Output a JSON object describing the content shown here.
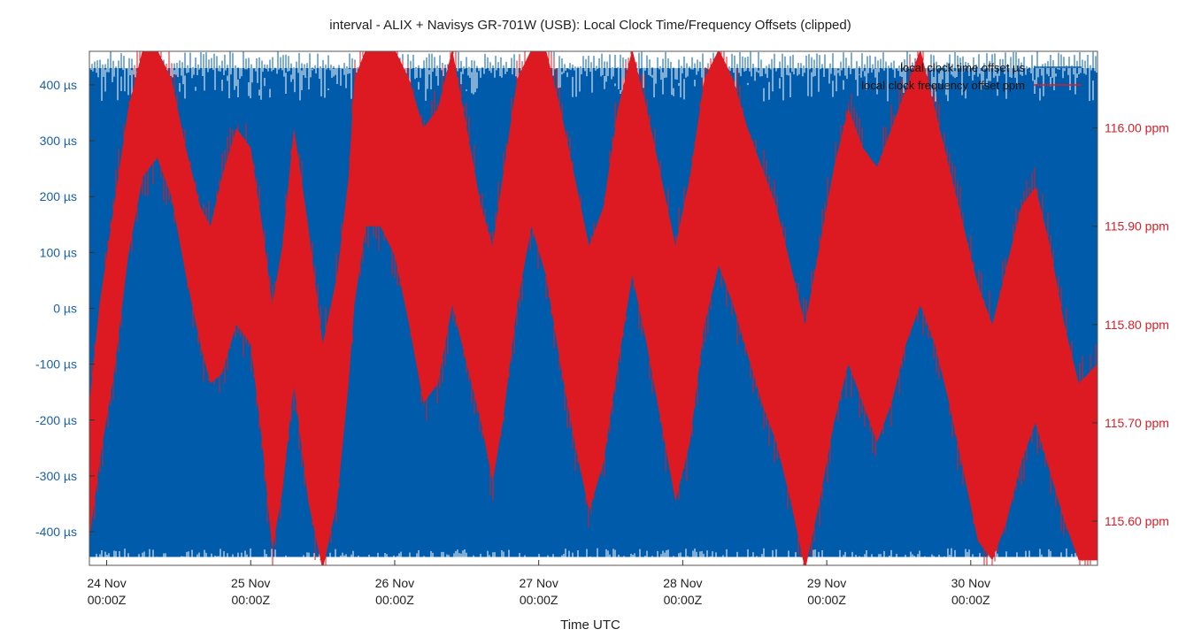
{
  "chart_data": {
    "type": "line",
    "title": "interval - ALIX + Navisys GR-701W (USB): Local Clock Time/Frequency Offsets (clipped)",
    "xlabel": "Time UTC",
    "x_ticks": [
      {
        "day": "24 Nov",
        "time": "00:00Z"
      },
      {
        "day": "25 Nov",
        "time": "00:00Z"
      },
      {
        "day": "26 Nov",
        "time": "00:00Z"
      },
      {
        "day": "27 Nov",
        "time": "00:00Z"
      },
      {
        "day": "28 Nov",
        "time": "00:00Z"
      },
      {
        "day": "29 Nov",
        "time": "00:00Z"
      },
      {
        "day": "30 Nov",
        "time": "00:00Z"
      }
    ],
    "x_range_days": [
      -0.12,
      6.88
    ],
    "y_left": {
      "unit": "µs",
      "range": [
        -460,
        460
      ],
      "ticks": [
        400,
        300,
        200,
        100,
        0,
        -100,
        -200,
        -300,
        -400
      ],
      "tick_labels": [
        "400 µs",
        "300 µs",
        "200 µs",
        "100 µs",
        "0 µs",
        "-100 µs",
        "-200 µs",
        "-300 µs",
        "-400 µs"
      ],
      "color": "#1a5fa8"
    },
    "y_right": {
      "unit": "ppm",
      "range": [
        115.555,
        116.078
      ],
      "ticks": [
        116.0,
        115.9,
        115.8,
        115.7,
        115.6
      ],
      "tick_labels": [
        "116.00 ppm",
        "115.90 ppm",
        "115.80 ppm",
        "115.70 ppm",
        "115.60 ppm"
      ],
      "color": "#d4202a"
    },
    "legend_position": "top-right",
    "grid": false,
    "series": [
      {
        "name": "local clock time offset µs",
        "axis": "left",
        "color": "#005baa",
        "description_values": "noise filling roughly -450 to +450 µs (clipped)",
        "band_low": -445,
        "band_high": 430
      },
      {
        "name": "local clock frequency offset ppm",
        "axis": "right",
        "color": "#dd1a22",
        "x_days": [
          -0.12,
          -0.05,
          0.05,
          0.15,
          0.25,
          0.35,
          0.45,
          0.55,
          0.65,
          0.72,
          0.8,
          0.9,
          1.0,
          1.08,
          1.15,
          1.22,
          1.3,
          1.4,
          1.5,
          1.6,
          1.68,
          1.72,
          1.8,
          1.9,
          2.0,
          2.1,
          2.2,
          2.3,
          2.4,
          2.5,
          2.6,
          2.68,
          2.75,
          2.85,
          2.95,
          3.05,
          3.15,
          3.25,
          3.35,
          3.45,
          3.55,
          3.65,
          3.75,
          3.85,
          3.95,
          4.05,
          4.15,
          4.25,
          4.35,
          4.45,
          4.55,
          4.65,
          4.75,
          4.85,
          4.95,
          5.05,
          5.15,
          5.25,
          5.35,
          5.45,
          5.55,
          5.65,
          5.75,
          5.85,
          5.95,
          6.05,
          6.15,
          6.25,
          6.35,
          6.45,
          6.55,
          6.65,
          6.75,
          6.88
        ],
        "y_ppm_low": [
          115.58,
          115.66,
          115.75,
          115.87,
          115.95,
          115.97,
          115.93,
          115.85,
          115.78,
          115.74,
          115.75,
          115.8,
          115.78,
          115.68,
          115.57,
          115.63,
          115.74,
          115.62,
          115.55,
          115.62,
          115.74,
          115.82,
          115.9,
          115.9,
          115.87,
          115.8,
          115.72,
          115.74,
          115.82,
          115.76,
          115.7,
          115.64,
          115.7,
          115.82,
          115.9,
          115.85,
          115.76,
          115.68,
          115.61,
          115.66,
          115.76,
          115.85,
          115.78,
          115.7,
          115.62,
          115.68,
          115.8,
          115.86,
          115.82,
          115.77,
          115.72,
          115.68,
          115.62,
          115.55,
          115.62,
          115.7,
          115.76,
          115.72,
          115.68,
          115.72,
          115.78,
          115.82,
          115.78,
          115.72,
          115.65,
          115.58,
          115.56,
          115.6,
          115.66,
          115.7,
          115.65,
          115.6,
          115.56,
          115.56
        ],
        "y_ppm_high": [
          115.72,
          115.82,
          115.92,
          116.02,
          116.08,
          116.08,
          116.05,
          115.98,
          115.92,
          115.9,
          115.95,
          116.0,
          115.98,
          115.9,
          115.82,
          115.88,
          116.0,
          115.9,
          115.78,
          115.85,
          115.95,
          116.05,
          116.08,
          116.08,
          116.08,
          116.05,
          116.0,
          116.02,
          116.08,
          116.0,
          115.92,
          115.88,
          115.95,
          116.05,
          116.08,
          116.08,
          116.02,
          115.95,
          115.88,
          115.92,
          116.02,
          116.08,
          116.02,
          115.95,
          115.88,
          115.95,
          116.05,
          116.08,
          116.05,
          116.0,
          115.96,
          115.92,
          115.86,
          115.8,
          115.88,
          115.96,
          116.02,
          115.98,
          115.96,
          116.0,
          116.04,
          116.08,
          116.02,
          115.96,
          115.9,
          115.84,
          115.8,
          115.86,
          115.92,
          115.94,
          115.88,
          115.8,
          115.74,
          115.76
        ]
      }
    ]
  }
}
